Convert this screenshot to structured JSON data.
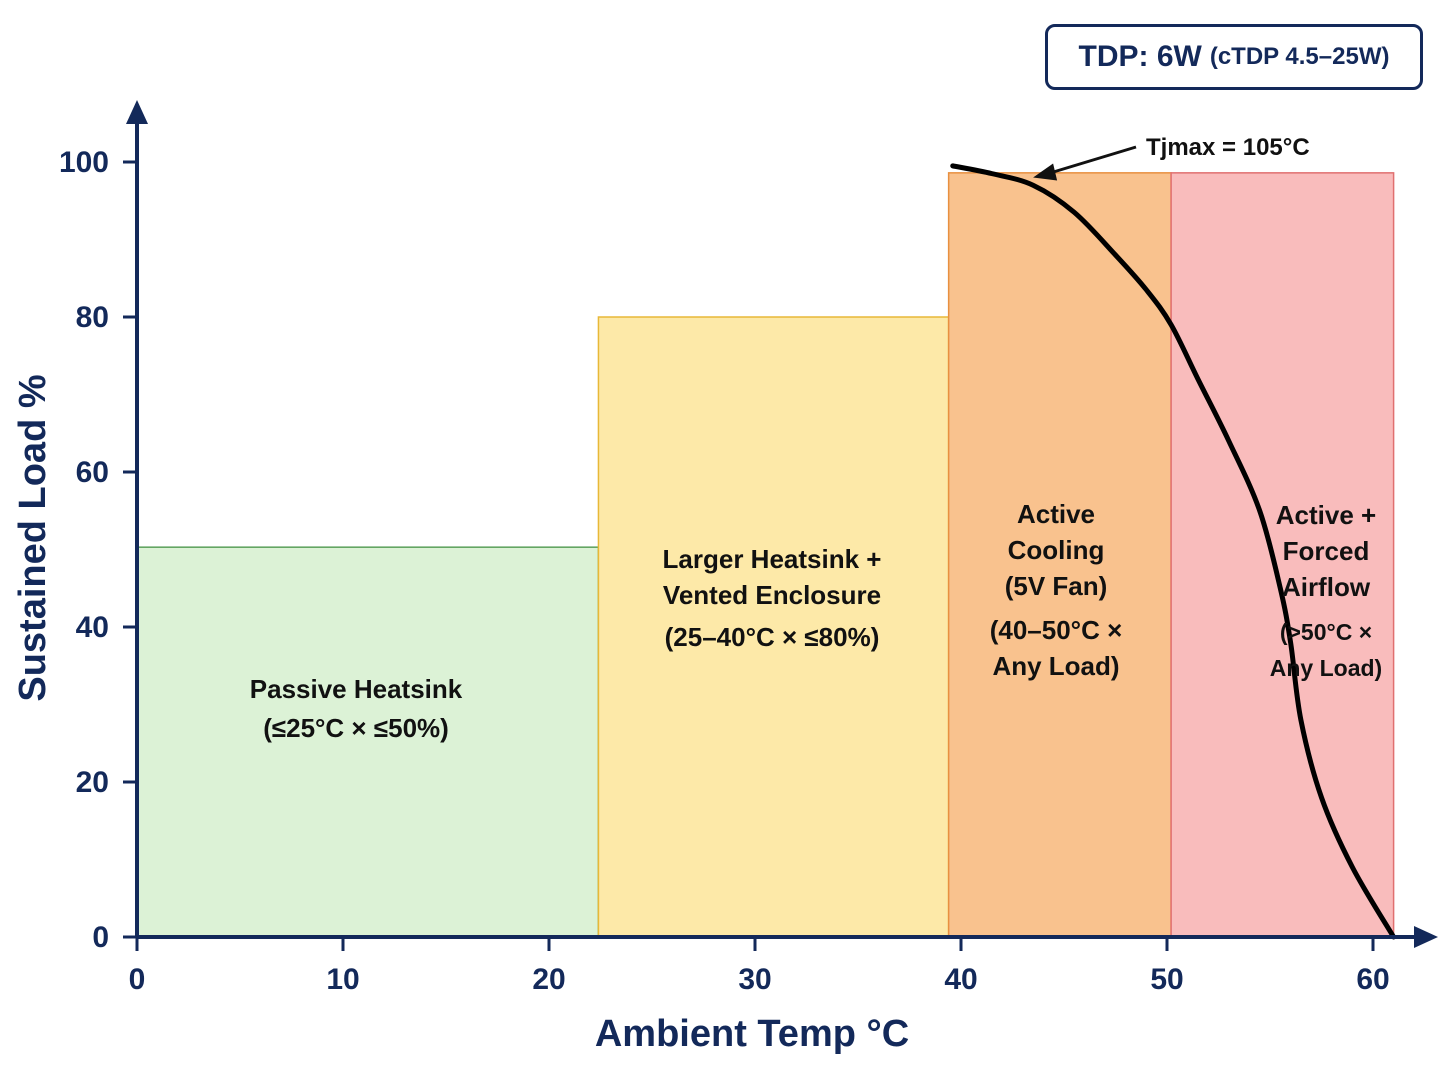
{
  "chart_data": {
    "type": "area",
    "xlabel": "Ambient Temp °C",
    "ylabel": "Sustained Load %",
    "xlim": [
      0,
      63
    ],
    "ylim": [
      0,
      105
    ],
    "xticks": [
      0,
      10,
      20,
      30,
      40,
      50,
      60
    ],
    "yticks": [
      0,
      20,
      40,
      60,
      80,
      100
    ],
    "zones": [
      {
        "x0": 0,
        "x1": 22.4,
        "y": 50.3,
        "lines": [
          "Passive Heatsink",
          "(≤25°C × ≤50%)"
        ],
        "fill": "#dcf2d6",
        "stroke": "#5aa05a"
      },
      {
        "x0": 22.4,
        "x1": 39.4,
        "y": 80.0,
        "lines": [
          "Larger Heatsink +",
          "Vented Enclosure",
          "(25–40°C × ≤80%)"
        ],
        "fill": "#fde9a8",
        "stroke": "#e8b838"
      },
      {
        "x0": 39.4,
        "x1": 50.2,
        "y": 98.6,
        "lines": [
          "Active",
          "Cooling",
          "(5V Fan)",
          "(40–50°C ×",
          "Any Load)"
        ],
        "fill": "#f9c28e",
        "stroke": "#e89040"
      },
      {
        "x0": 50.2,
        "x1": 61.0,
        "y": 98.6,
        "lines": [
          "Active +",
          "Forced",
          "Airflow",
          "(>50°C ×",
          "Any Load)"
        ],
        "fill": "#f9bcbc",
        "stroke": "#e07070"
      }
    ],
    "curve": {
      "x": [
        39.6,
        41.5,
        43.5,
        45.5,
        47.5,
        49.0,
        50.2,
        51.5,
        53.0,
        54.5,
        55.5,
        56.0,
        56.5,
        57.5,
        59.0,
        61.0
      ],
      "y": [
        99.5,
        98.5,
        97.0,
        93.5,
        88.0,
        83.5,
        79.0,
        72.0,
        64.0,
        55.0,
        45.0,
        38.0,
        28.0,
        18.0,
        9.0,
        0.0
      ]
    },
    "annotation": {
      "text": "Tjmax = 105°C",
      "x": 43.5,
      "y": 98.0
    },
    "badge": {
      "main": "TDP: 6W",
      "sub": "(cTDP 4.5–25W)"
    }
  },
  "colors": {
    "axis": "#13295a",
    "curve": "#000000"
  }
}
